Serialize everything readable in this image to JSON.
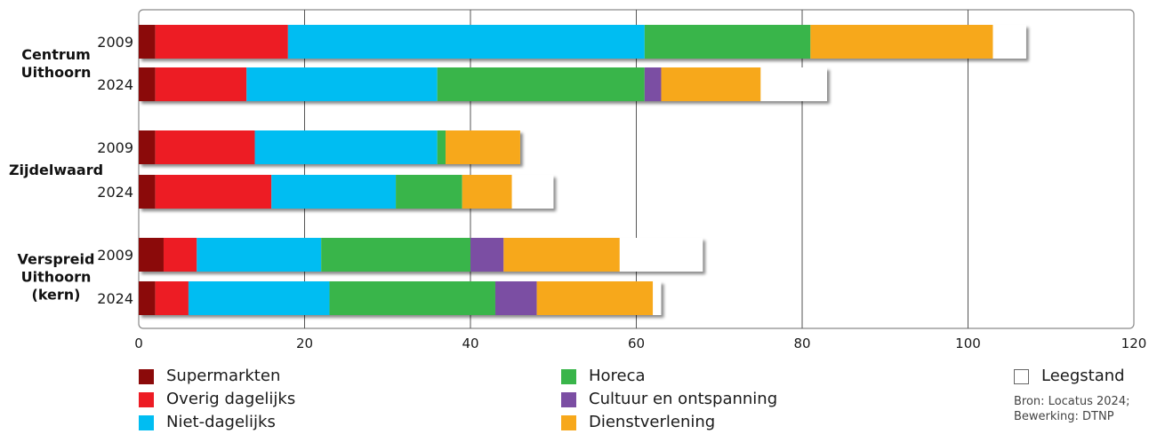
{
  "chart_data": {
    "type": "bar",
    "orientation": "horizontal",
    "stacked": true,
    "xlim": [
      0,
      120
    ],
    "xticks": [
      0,
      20,
      40,
      60,
      80,
      100,
      120
    ],
    "grid": true,
    "groups": [
      {
        "name": "Centrum\nUithoorn",
        "rows": [
          {
            "year": "2009",
            "values": [
              2,
              16,
              43,
              20,
              0,
              22,
              4
            ]
          },
          {
            "year": "2024",
            "values": [
              2,
              11,
              23,
              25,
              2,
              12,
              8
            ]
          }
        ]
      },
      {
        "name": "Zijdelwaard",
        "rows": [
          {
            "year": "2009",
            "values": [
              2,
              12,
              22,
              1,
              0,
              9,
              0
            ]
          },
          {
            "year": "2024",
            "values": [
              2,
              14,
              15,
              8,
              0,
              6,
              5
            ]
          }
        ]
      },
      {
        "name": "Verspreid\nUithoorn\n(kern)",
        "rows": [
          {
            "year": "2009",
            "values": [
              3,
              4,
              15,
              18,
              4,
              14,
              10
            ]
          },
          {
            "year": "2024",
            "values": [
              2,
              4,
              17,
              20,
              5,
              14,
              1
            ]
          }
        ]
      }
    ],
    "series": [
      {
        "name": "Supermarkten",
        "color": "#8b0a0a"
      },
      {
        "name": "Overig dagelijks",
        "color": "#ed1c24"
      },
      {
        "name": "Niet-dagelijks",
        "color": "#00bdf2"
      },
      {
        "name": "Horeca",
        "color": "#39b54a"
      },
      {
        "name": "Cultuur en ontspanning",
        "color": "#7b4ea3"
      },
      {
        "name": "Dienstverlening",
        "color": "#f7a81b"
      },
      {
        "name": "Leegstand",
        "color": "#ffffff"
      }
    ]
  },
  "source": {
    "line1": "Bron: Locatus 2024;",
    "line2": "Bewerking: DTNP"
  }
}
